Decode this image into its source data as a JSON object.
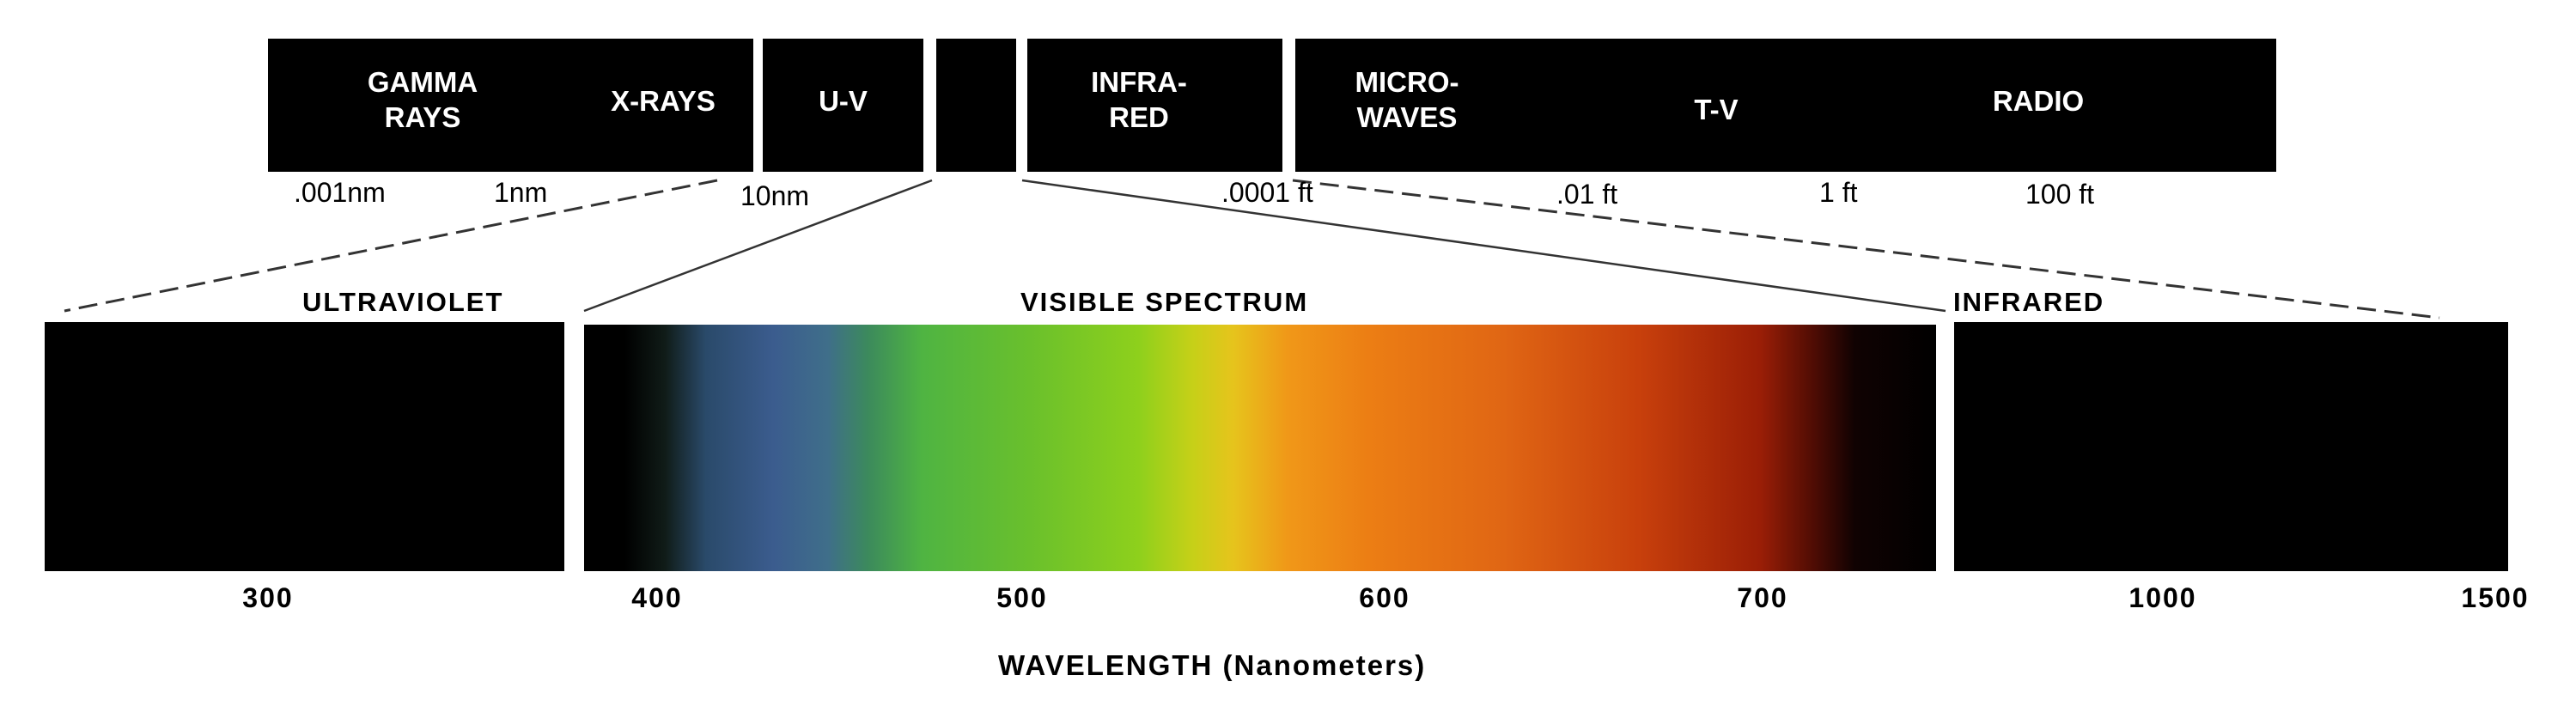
{
  "spectrum_bands": [
    {
      "id": "gamma",
      "lines": [
        "GAMMA",
        "RAYS"
      ]
    },
    {
      "id": "xray",
      "lines": [
        "X-RAYS"
      ]
    },
    {
      "id": "uv",
      "lines": [
        "U-V"
      ]
    },
    {
      "id": "visible",
      "lines": []
    },
    {
      "id": "infrared",
      "lines": [
        "INFRA-",
        "RED"
      ]
    },
    {
      "id": "microwaves",
      "lines": [
        "MICRO-",
        "WAVES"
      ]
    },
    {
      "id": "tv",
      "lines": [
        "T-V"
      ]
    },
    {
      "id": "radio",
      "lines": [
        "RADIO"
      ]
    }
  ],
  "scale_labels": [
    ".001nm",
    "1nm",
    "10nm",
    ".0001 ft",
    ".01 ft",
    "1 ft",
    "100 ft"
  ],
  "section_labels": {
    "ultraviolet": "ULTRAVIOLET",
    "visible": "VISIBLE SPECTRUM",
    "infrared": "INFRARED"
  },
  "wavelength_ticks": [
    "300",
    "400",
    "500",
    "600",
    "700",
    "1000",
    "1500"
  ],
  "axis_title": "WAVELENGTH (Nanometers)",
  "colors": {
    "band_fill": "#000000",
    "band_text": "#ffffff",
    "background": "#ffffff",
    "line": "#444444"
  }
}
